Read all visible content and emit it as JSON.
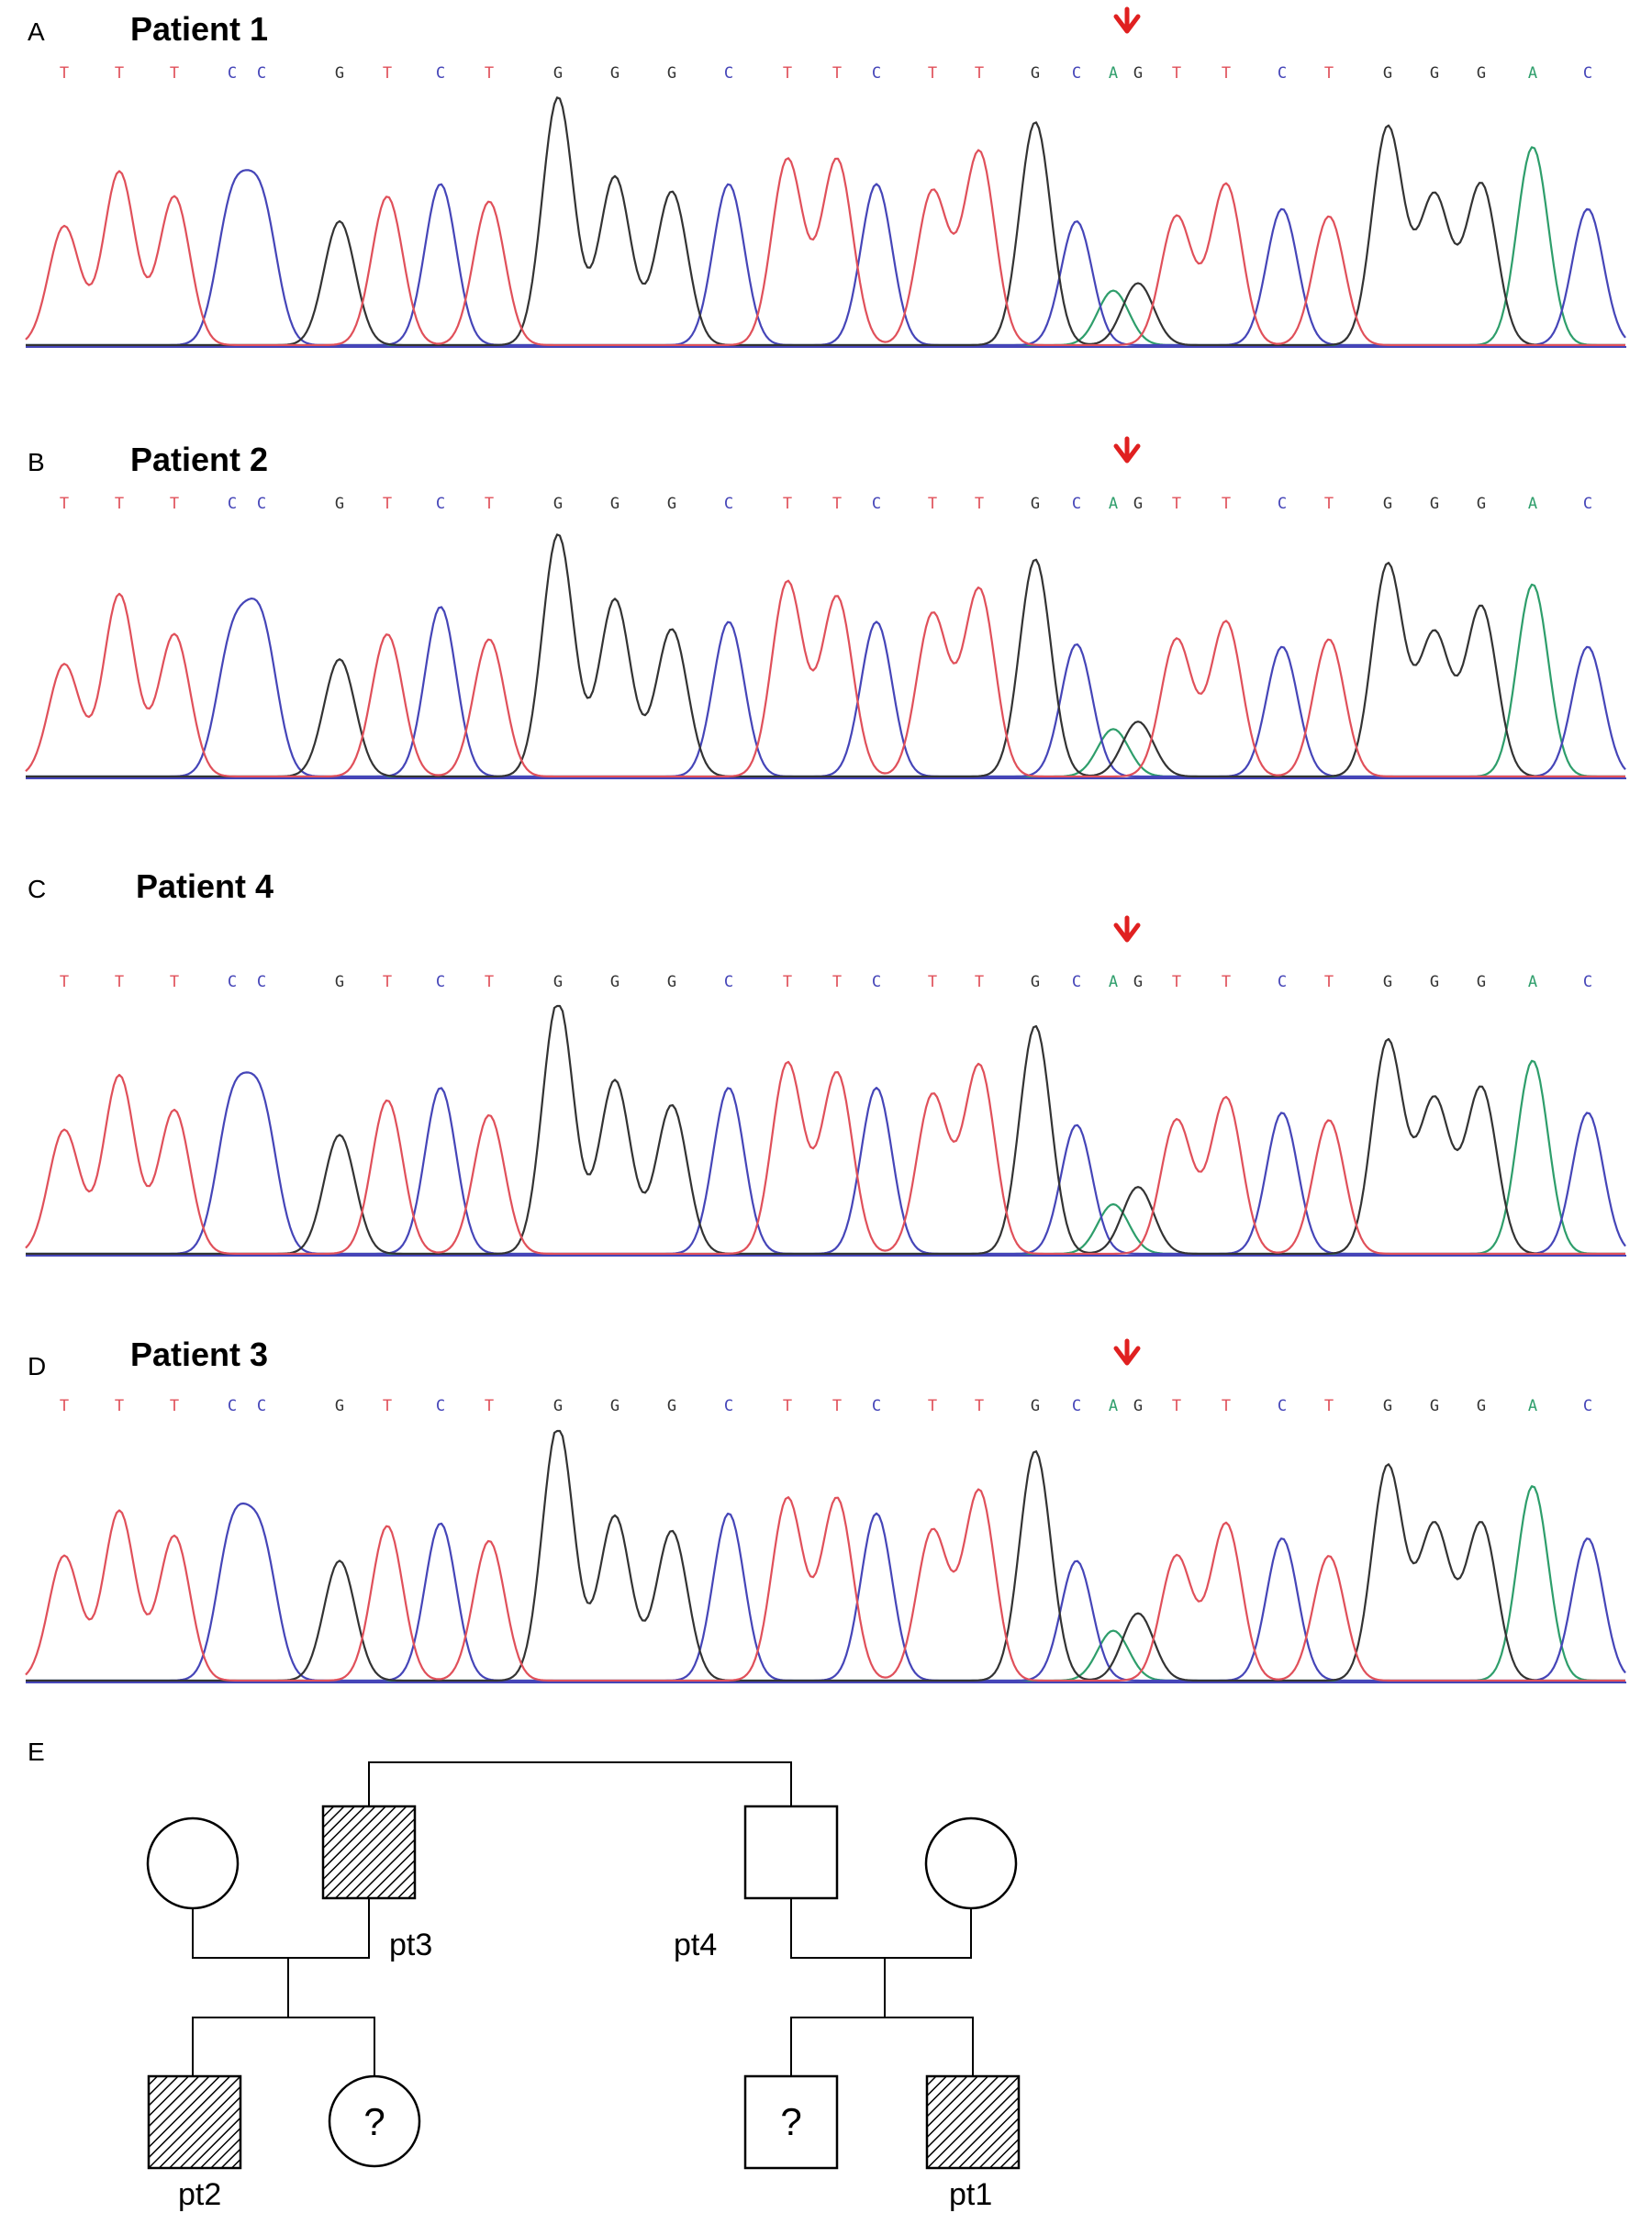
{
  "colors": {
    "A": "#2e9e6b",
    "C": "#4545b8",
    "G": "#333333",
    "T": "#e0505a",
    "arrow": "#e02020"
  },
  "sequence": [
    "T",
    "T",
    "T",
    "C",
    "C",
    "G",
    "T",
    "C",
    "T",
    "G",
    "G",
    "G",
    "C",
    "T",
    "T",
    "C",
    "T",
    "T",
    "G",
    "C",
    "A",
    "G",
    "T",
    "T",
    "C",
    "T",
    "G",
    "G",
    "G",
    "A",
    "C"
  ],
  "variant_marker": "red-down-arrow-icon",
  "panels": [
    {
      "letter": "A",
      "title": "Patient 1"
    },
    {
      "letter": "B",
      "title": "Patient 2"
    },
    {
      "letter": "C",
      "title": "Patient 4"
    },
    {
      "letter": "D",
      "title": "Patient 3"
    }
  ],
  "pedigree": {
    "letter": "E",
    "labels": {
      "pt3": "pt3",
      "pt4": "pt4",
      "pt2": "pt2",
      "pt1": "pt1"
    },
    "unknown_mark": "?"
  }
}
